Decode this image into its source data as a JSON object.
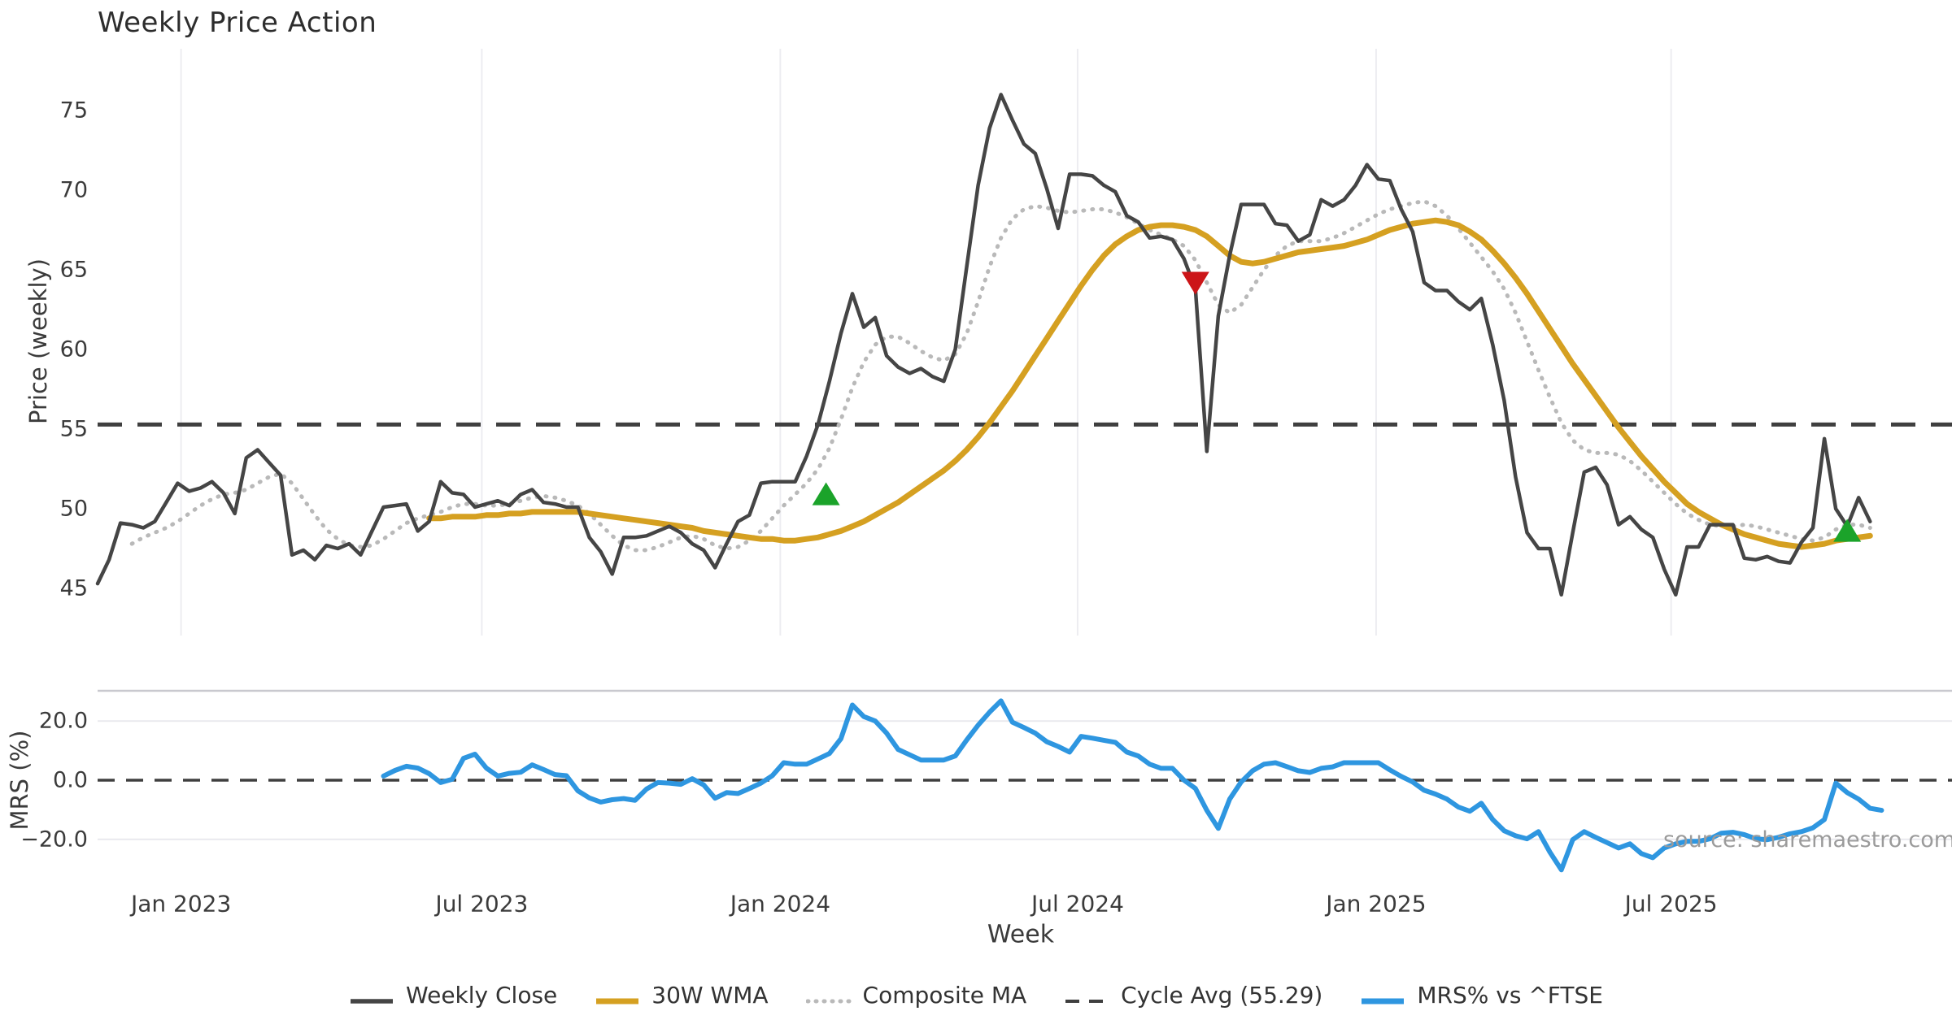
{
  "title": "Weekly Price Action",
  "source_note": "source: sharemaestro.com",
  "chart_data": {
    "type": "line",
    "title": "Weekly Price Action",
    "xlabel": "Week",
    "x_is_weekly": true,
    "xticks": [
      {
        "label": "Jan 2023",
        "week": 7.3
      },
      {
        "label": "Jul 2023",
        "week": 33.6
      },
      {
        "label": "Jan 2024",
        "week": 59.7
      },
      {
        "label": "Jul 2024",
        "week": 85.7
      },
      {
        "label": "Jan 2025",
        "week": 111.8
      },
      {
        "label": "Jul 2025",
        "week": 137.6
      }
    ],
    "panels": [
      {
        "name": "price",
        "ylabel": "Price (weekly)",
        "yticks": [
          45,
          50,
          55,
          60,
          65,
          70,
          75
        ],
        "ylim": [
          41.5,
          78.5
        ],
        "grid": "vertical-only",
        "cycle_avg": 55.29,
        "series": [
          {
            "name": "Weekly Close",
            "style": "solid",
            "color": "#454545",
            "width": 4.5,
            "start_week": 0,
            "values": [
              45.3,
              46.8,
              49.1,
              49.0,
              48.8,
              49.2,
              50.4,
              51.6,
              51.1,
              51.3,
              51.7,
              51.0,
              49.7,
              53.2,
              53.7,
              52.9,
              52.1,
              47.1,
              47.4,
              46.8,
              47.7,
              47.5,
              47.8,
              47.1,
              48.6,
              50.1,
              50.2,
              50.3,
              48.6,
              49.2,
              51.7,
              51.0,
              50.9,
              50.1,
              50.3,
              50.5,
              50.2,
              50.9,
              51.2,
              50.4,
              50.3,
              50.1,
              50.1,
              48.2,
              47.3,
              45.9,
              48.2,
              48.2,
              48.3,
              48.6,
              48.9,
              48.5,
              47.8,
              47.4,
              46.3,
              47.8,
              49.2,
              49.6,
              51.6,
              51.7,
              51.7,
              51.7,
              53.3,
              55.3,
              58.0,
              61.0,
              63.5,
              61.4,
              62.0,
              59.6,
              58.9,
              58.5,
              58.8,
              58.3,
              58.0,
              60.0,
              65.2,
              70.3,
              73.9,
              76.0,
              74.4,
              72.9,
              72.3,
              70.1,
              67.6,
              71.0,
              71.0,
              70.9,
              70.3,
              69.9,
              68.4,
              68.0,
              67.0,
              67.1,
              66.9,
              65.7,
              63.8,
              53.6,
              62.1,
              65.9,
              69.1,
              69.1,
              69.1,
              67.9,
              67.8,
              66.8,
              67.2,
              69.4,
              69.0,
              69.4,
              70.3,
              71.6,
              70.7,
              70.6,
              68.8,
              67.4,
              64.2,
              63.7,
              63.7,
              63.0,
              62.5,
              63.2,
              60.3,
              56.8,
              52.0,
              48.5,
              47.5,
              47.5,
              44.6,
              48.5,
              52.3,
              52.6,
              51.5,
              49.0,
              49.5,
              48.7,
              48.2,
              46.2,
              44.6,
              47.6,
              47.6,
              49.0,
              49.0,
              49.0,
              46.9,
              46.8,
              47.0,
              46.7,
              46.6,
              47.9,
              48.8,
              54.4,
              50.0,
              48.9,
              50.7,
              49.2
            ]
          },
          {
            "name": "30W WMA",
            "style": "solid",
            "color": "#D5A021",
            "width": 7,
            "start_week": 29,
            "values": [
              49.4,
              49.4,
              49.5,
              49.5,
              49.5,
              49.6,
              49.6,
              49.7,
              49.7,
              49.8,
              49.8,
              49.8,
              49.8,
              49.8,
              49.7,
              49.6,
              49.5,
              49.4,
              49.3,
              49.2,
              49.1,
              49.0,
              48.9,
              48.8,
              48.6,
              48.5,
              48.4,
              48.3,
              48.2,
              48.1,
              48.1,
              48.0,
              48.0,
              48.1,
              48.2,
              48.4,
              48.6,
              48.9,
              49.2,
              49.6,
              50.0,
              50.4,
              50.9,
              51.4,
              51.9,
              52.4,
              53.0,
              53.7,
              54.5,
              55.4,
              56.4,
              57.4,
              58.5,
              59.6,
              60.7,
              61.8,
              62.9,
              64.0,
              65.0,
              65.9,
              66.6,
              67.1,
              67.5,
              67.7,
              67.8,
              67.8,
              67.7,
              67.5,
              67.1,
              66.5,
              65.9,
              65.5,
              65.4,
              65.5,
              65.7,
              65.9,
              66.1,
              66.2,
              66.3,
              66.4,
              66.5,
              66.7,
              66.9,
              67.2,
              67.5,
              67.7,
              67.9,
              68.0,
              68.1,
              68.0,
              67.8,
              67.4,
              66.9,
              66.2,
              65.4,
              64.5,
              63.5,
              62.4,
              61.3,
              60.2,
              59.1,
              58.1,
              57.1,
              56.1,
              55.1,
              54.2,
              53.3,
              52.5,
              51.7,
              51.0,
              50.3,
              49.8,
              49.4,
              49.0,
              48.7,
              48.4,
              48.2,
              48.0,
              47.8,
              47.7,
              47.6,
              47.7,
              47.8,
              48.0,
              48.1,
              48.2,
              48.3
            ]
          },
          {
            "name": "Composite MA",
            "style": "dotted",
            "color": "#b9b9b9",
            "width": 5,
            "start_week": 3,
            "values": [
              47.8,
              48.2,
              48.5,
              48.8,
              49.2,
              49.7,
              50.2,
              50.6,
              50.9,
              51.0,
              51.2,
              51.6,
              52.0,
              52.2,
              51.6,
              50.6,
              49.6,
              48.7,
              48.1,
              47.7,
              47.6,
              47.7,
              48.1,
              48.6,
              49.1,
              49.4,
              49.6,
              49.8,
              50.1,
              50.3,
              50.3,
              50.2,
              50.2,
              50.3,
              50.5,
              50.7,
              50.8,
              50.7,
              50.5,
              50.2,
              49.7,
              49.0,
              48.3,
              47.7,
              47.4,
              47.4,
              47.6,
              47.9,
              48.2,
              48.3,
              48.1,
              47.7,
              47.5,
              47.6,
              48.0,
              48.6,
              49.4,
              50.2,
              50.9,
              51.6,
              52.5,
              53.8,
              55.6,
              57.6,
              59.2,
              60.3,
              60.8,
              60.8,
              60.4,
              59.9,
              59.5,
              59.3,
              59.7,
              61.0,
              63.0,
              65.2,
              67.0,
              68.2,
              68.8,
              69.0,
              68.9,
              68.7,
              68.6,
              68.7,
              68.8,
              68.8,
              68.6,
              68.3,
              67.9,
              67.5,
              67.2,
              66.9,
              66.5,
              65.6,
              64.2,
              62.8,
              62.3,
              62.8,
              63.9,
              65.0,
              65.9,
              66.5,
              66.8,
              66.8,
              66.8,
              67.0,
              67.3,
              67.7,
              68.1,
              68.5,
              68.8,
              69.0,
              69.2,
              69.3,
              69.0,
              68.4,
              67.6,
              66.7,
              65.8,
              64.9,
              63.8,
              62.3,
              60.5,
              58.7,
              57.0,
              55.4,
              54.3,
              53.7,
              53.5,
              53.5,
              53.4,
              53.0,
              52.4,
              51.7,
              51.0,
              50.3,
              49.7,
              49.3,
              49.0,
              48.9,
              48.9,
              49.0,
              48.9,
              48.7,
              48.5,
              48.3,
              48.1,
              48.0,
              48.2,
              48.7,
              49.0,
              49.0,
              48.8
            ]
          }
        ],
        "markers": [
          {
            "kind": "buy-triangle-up",
            "color": "#1BA32A",
            "week": 63.7,
            "value": 50.8
          },
          {
            "kind": "sell-triangle-down",
            "color": "#CC1518",
            "week": 96.0,
            "value": 64.3
          },
          {
            "kind": "buy-triangle-up",
            "color": "#1BA32A",
            "week": 153.0,
            "value": 48.5
          }
        ],
        "cycle_avg_label": "Cycle Avg (55.29)"
      },
      {
        "name": "mrs",
        "ylabel": "MRS (%)",
        "yticks": [
          -20.0,
          0.0,
          20.0
        ],
        "ytick_labels": [
          "−20.0",
          "0.0",
          "20.0"
        ],
        "ylim": [
          -33,
          30
        ],
        "zero_line": "dashed",
        "series": [
          {
            "name": "MRS% vs ^FTSE",
            "style": "solid",
            "color": "#2E96E0",
            "width": 6,
            "start_week": 25,
            "values": [
              1.4,
              3.3,
              4.7,
              4.1,
              2.2,
              -0.8,
              0.3,
              7.4,
              8.8,
              4.1,
              1.4,
              2.3,
              2.7,
              5.2,
              3.6,
              1.9,
              1.5,
              -3.6,
              -6.0,
              -7.4,
              -6.6,
              -6.2,
              -6.8,
              -3.0,
              -0.8,
              -1.0,
              -1.4,
              0.5,
              -1.6,
              -6.1,
              -4.2,
              -4.5,
              -2.8,
              -1.0,
              1.5,
              5.9,
              5.4,
              5.4,
              7.2,
              9.0,
              14.0,
              25.4,
              21.5,
              20.0,
              15.9,
              10.4,
              8.6,
              6.8,
              6.8,
              6.8,
              8.2,
              13.6,
              18.6,
              23.0,
              26.8,
              19.6,
              17.8,
              15.9,
              13.0,
              11.4,
              9.5,
              14.8,
              14.2,
              13.5,
              12.8,
              9.5,
              8.2,
              5.4,
              4.0,
              4.0,
              0.0,
              -2.8,
              -10.2,
              -16.3,
              -6.4,
              -0.6,
              3.2,
              5.4,
              5.9,
              4.6,
              3.2,
              2.6,
              4.0,
              4.5,
              5.9,
              5.9,
              5.9,
              5.9,
              3.5,
              1.3,
              -0.6,
              -3.4,
              -4.7,
              -6.4,
              -9.1,
              -10.5,
              -7.8,
              -13.3,
              -17.1,
              -18.8,
              -19.8,
              -17.4,
              -24.3,
              -30.3,
              -20.1,
              -17.4,
              -19.3,
              -21.1,
              -22.9,
              -21.5,
              -24.8,
              -26.2,
              -22.9,
              -21.5,
              -20.7,
              -20.7,
              -19.8,
              -17.9,
              -17.6,
              -18.4,
              -19.8,
              -20.1,
              -19.3,
              -18.1,
              -17.4,
              -16.1,
              -13.3,
              -1.0,
              -4.2,
              -6.4,
              -9.5,
              -10.2
            ]
          }
        ]
      }
    ],
    "legend": [
      {
        "label": "Weekly Close",
        "color": "#454545",
        "style": "solid"
      },
      {
        "label": "30W WMA",
        "color": "#D5A021",
        "style": "solid-thick"
      },
      {
        "label": "Composite MA",
        "color": "#b9b9b9",
        "style": "dotted"
      },
      {
        "label": "Cycle Avg (55.29)",
        "color": "#3f3f3f",
        "style": "dashed"
      },
      {
        "label": "MRS% vs ^FTSE",
        "color": "#2E96E0",
        "style": "solid-thick"
      }
    ],
    "legend_position": "bottom-center",
    "colors": {
      "grid_vertical": "#ededf1",
      "grid_horizontal_mrs": "#e9e9ee",
      "panel_border": "#c9c9cf",
      "cycle_avg_dash": "#3f3f3f",
      "zero_dash": "#3f3f3f",
      "background": "#ffffff"
    }
  }
}
